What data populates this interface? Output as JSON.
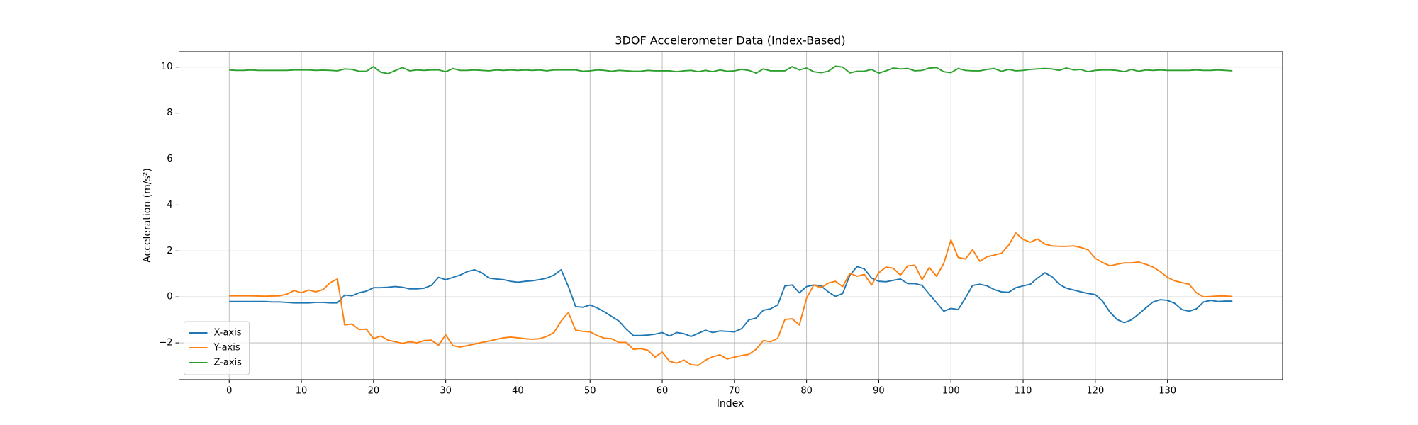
{
  "chart_data": {
    "type": "line",
    "title": "3DOF Accelerometer Data (Index-Based)",
    "x_label": "Index",
    "y_label": "Acceleration (m/s²)",
    "x": [
      0,
      1,
      2,
      3,
      4,
      5,
      6,
      7,
      8,
      9,
      10,
      11,
      12,
      13,
      14,
      15,
      16,
      17,
      18,
      19,
      20,
      21,
      22,
      23,
      24,
      25,
      26,
      27,
      28,
      29,
      30,
      31,
      32,
      33,
      34,
      35,
      36,
      37,
      38,
      39,
      40,
      41,
      42,
      43,
      44,
      45,
      46,
      47,
      48,
      49,
      50,
      51,
      52,
      53,
      54,
      55,
      56,
      57,
      58,
      59,
      60,
      61,
      62,
      63,
      64,
      65,
      66,
      67,
      68,
      69,
      70,
      71,
      72,
      73,
      74,
      75,
      76,
      77,
      78,
      79,
      80,
      81,
      82,
      83,
      84,
      85,
      86,
      87,
      88,
      89,
      90,
      91,
      92,
      93,
      94,
      95,
      96,
      97,
      98,
      99,
      100,
      101,
      102,
      103,
      104,
      105,
      106,
      107,
      108,
      109,
      110,
      111,
      112,
      113,
      114,
      115,
      116,
      117,
      118,
      119,
      120,
      121,
      122,
      123,
      124,
      125,
      126,
      127,
      128,
      129,
      130,
      131,
      132,
      133,
      134,
      135,
      136,
      137,
      138,
      139
    ],
    "series": [
      {
        "name": "X-axis",
        "color": "#1f77b4",
        "values": [
          -0.2,
          -0.2,
          -0.2,
          -0.2,
          -0.2,
          -0.2,
          -0.22,
          -0.22,
          -0.24,
          -0.26,
          -0.26,
          -0.26,
          -0.24,
          -0.24,
          -0.26,
          -0.26,
          0.08,
          0.05,
          0.18,
          0.25,
          0.4,
          0.4,
          0.42,
          0.45,
          0.42,
          0.35,
          0.35,
          0.38,
          0.5,
          0.85,
          0.75,
          0.85,
          0.95,
          1.1,
          1.18,
          1.05,
          0.82,
          0.78,
          0.75,
          0.68,
          0.64,
          0.68,
          0.7,
          0.75,
          0.82,
          0.95,
          1.18,
          0.45,
          -0.42,
          -0.45,
          -0.35,
          -0.48,
          -0.65,
          -0.85,
          -1.05,
          -1.4,
          -1.68,
          -1.68,
          -1.66,
          -1.62,
          -1.55,
          -1.7,
          -1.55,
          -1.6,
          -1.72,
          -1.58,
          -1.45,
          -1.55,
          -1.48,
          -1.5,
          -1.52,
          -1.38,
          -1.0,
          -0.92,
          -0.58,
          -0.52,
          -0.35,
          0.48,
          0.52,
          0.18,
          0.45,
          0.52,
          0.48,
          0.22,
          0.02,
          0.15,
          0.95,
          1.32,
          1.22,
          0.82,
          0.68,
          0.66,
          0.72,
          0.78,
          0.58,
          0.58,
          0.5,
          0.12,
          -0.25,
          -0.62,
          -0.5,
          -0.55,
          -0.05,
          0.5,
          0.55,
          0.48,
          0.32,
          0.22,
          0.2,
          0.4,
          0.48,
          0.55,
          0.82,
          1.05,
          0.88,
          0.55,
          0.38,
          0.3,
          0.22,
          0.15,
          0.1,
          -0.18,
          -0.65,
          -0.98,
          -1.12,
          -1.0,
          -0.75,
          -0.48,
          -0.22,
          -0.12,
          -0.15,
          -0.28,
          -0.55,
          -0.62,
          -0.52,
          -0.22,
          -0.15,
          -0.2,
          -0.18,
          -0.18
        ]
      },
      {
        "name": "Y-axis",
        "color": "#ff7f0e",
        "values": [
          0.05,
          0.05,
          0.05,
          0.05,
          0.04,
          0.03,
          0.04,
          0.05,
          0.12,
          0.28,
          0.18,
          0.3,
          0.22,
          0.32,
          0.62,
          0.78,
          -1.22,
          -1.18,
          -1.42,
          -1.4,
          -1.82,
          -1.7,
          -1.88,
          -1.95,
          -2.02,
          -1.95,
          -2.0,
          -1.9,
          -1.88,
          -2.1,
          -1.65,
          -2.12,
          -2.18,
          -2.12,
          -2.05,
          -1.98,
          -1.92,
          -1.85,
          -1.78,
          -1.75,
          -1.78,
          -1.82,
          -1.84,
          -1.82,
          -1.72,
          -1.55,
          -1.05,
          -0.68,
          -1.45,
          -1.5,
          -1.52,
          -1.68,
          -1.8,
          -1.82,
          -1.98,
          -1.98,
          -2.28,
          -2.25,
          -2.32,
          -2.62,
          -2.4,
          -2.8,
          -2.88,
          -2.75,
          -2.95,
          -2.98,
          -2.75,
          -2.6,
          -2.52,
          -2.7,
          -2.62,
          -2.55,
          -2.5,
          -2.28,
          -1.9,
          -1.95,
          -1.8,
          -0.98,
          -0.95,
          -1.22,
          -0.05,
          0.52,
          0.4,
          0.6,
          0.68,
          0.45,
          1.02,
          0.9,
          0.98,
          0.52,
          1.05,
          1.3,
          1.25,
          0.95,
          1.35,
          1.38,
          0.75,
          1.28,
          0.9,
          1.45,
          2.48,
          1.72,
          1.65,
          2.05,
          1.55,
          1.75,
          1.82,
          1.9,
          2.25,
          2.78,
          2.5,
          2.38,
          2.52,
          2.3,
          2.22,
          2.2,
          2.2,
          2.22,
          2.15,
          2.05,
          1.68,
          1.5,
          1.35,
          1.42,
          1.48,
          1.48,
          1.52,
          1.42,
          1.3,
          1.1,
          0.85,
          0.7,
          0.62,
          0.55,
          0.18,
          0.0,
          0.02,
          0.04,
          0.04,
          0.02
        ]
      },
      {
        "name": "Z-axis",
        "color": "#2ca02c",
        "values": [
          9.88,
          9.86,
          9.86,
          9.88,
          9.86,
          9.86,
          9.86,
          9.86,
          9.86,
          9.88,
          9.88,
          9.88,
          9.86,
          9.87,
          9.86,
          9.84,
          9.92,
          9.9,
          9.82,
          9.82,
          10.02,
          9.78,
          9.72,
          9.85,
          9.98,
          9.84,
          9.88,
          9.86,
          9.88,
          9.88,
          9.8,
          9.94,
          9.86,
          9.86,
          9.88,
          9.86,
          9.84,
          9.88,
          9.86,
          9.88,
          9.86,
          9.88,
          9.86,
          9.88,
          9.84,
          9.88,
          9.88,
          9.88,
          9.88,
          9.82,
          9.84,
          9.88,
          9.86,
          9.82,
          9.86,
          9.84,
          9.82,
          9.82,
          9.86,
          9.84,
          9.84,
          9.84,
          9.8,
          9.84,
          9.86,
          9.8,
          9.86,
          9.8,
          9.88,
          9.82,
          9.84,
          9.9,
          9.86,
          9.74,
          9.92,
          9.84,
          9.84,
          9.84,
          10.02,
          9.88,
          9.96,
          9.8,
          9.76,
          9.82,
          10.04,
          10.0,
          9.75,
          9.82,
          9.82,
          9.9,
          9.74,
          9.84,
          9.96,
          9.92,
          9.94,
          9.84,
          9.86,
          9.96,
          9.98,
          9.8,
          9.76,
          9.94,
          9.86,
          9.84,
          9.84,
          9.9,
          9.94,
          9.82,
          9.9,
          9.84,
          9.86,
          9.9,
          9.92,
          9.94,
          9.92,
          9.86,
          9.96,
          9.88,
          9.9,
          9.8,
          9.86,
          9.88,
          9.88,
          9.86,
          9.8,
          9.9,
          9.82,
          9.88,
          9.86,
          9.88,
          9.86,
          9.86,
          9.86,
          9.86,
          9.88,
          9.86,
          9.86,
          9.88,
          9.86,
          9.84
        ]
      }
    ],
    "xlim": [
      -6.95,
      145.95
    ],
    "xticks": [
      0,
      10,
      20,
      30,
      40,
      50,
      60,
      70,
      80,
      90,
      100,
      110,
      120,
      130
    ],
    "ylim": [
      -3.6,
      10.67
    ],
    "yticks": [
      {
        "value": -2,
        "label": "−2"
      },
      0,
      2,
      4,
      6,
      8,
      10
    ],
    "grid": true,
    "legend": "lower left"
  }
}
